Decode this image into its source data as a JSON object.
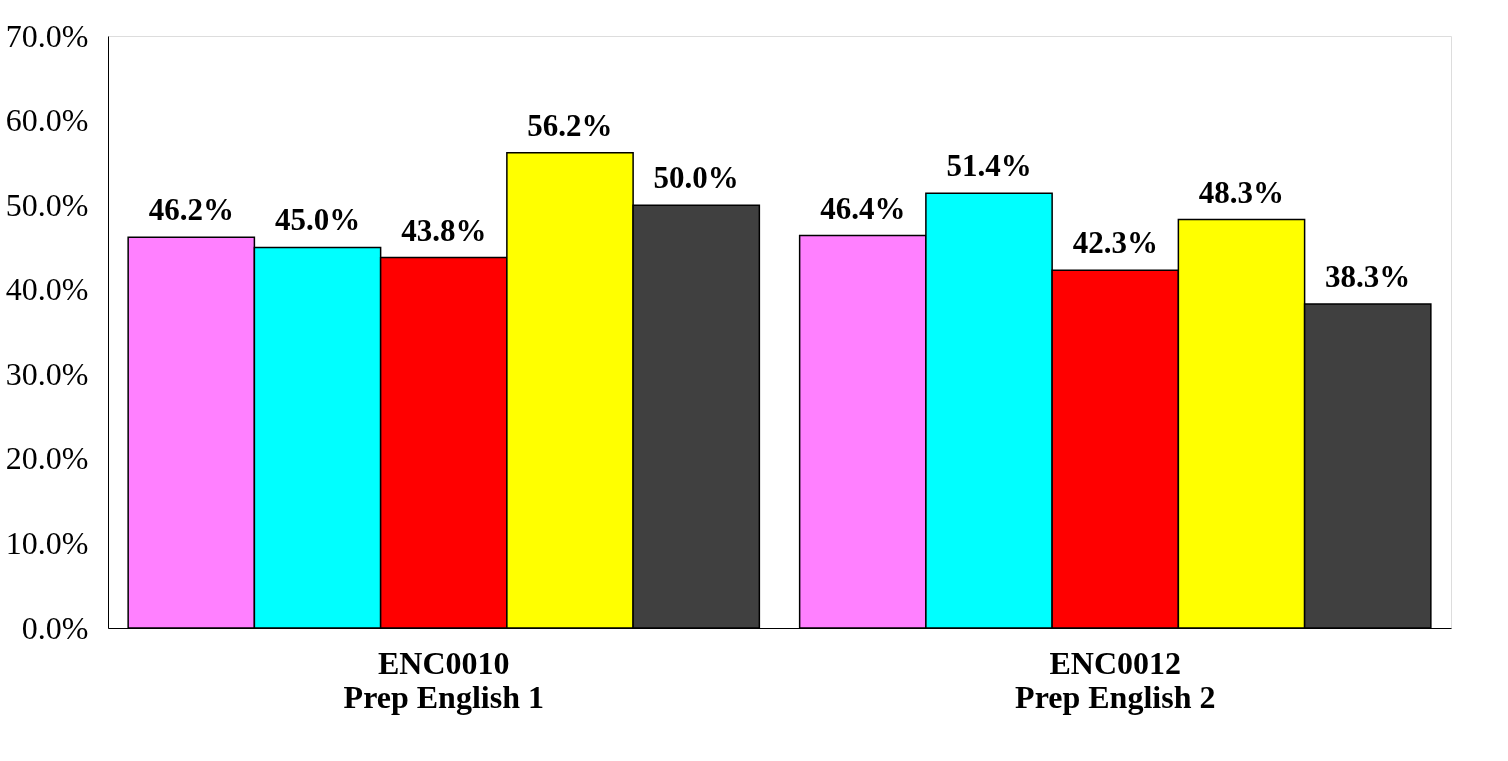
{
  "chart_data": {
    "type": "bar",
    "categories": [
      "ENC0010\nPrep English 1",
      "ENC0012\nPrep English 2"
    ],
    "series": [
      {
        "color": "#ff80ff",
        "values": [
          46.2,
          46.4
        ],
        "value_labels": [
          "46.2%",
          "46.4%"
        ]
      },
      {
        "color": "#00ffff",
        "values": [
          45.0,
          51.4
        ],
        "value_labels": [
          "45.0%",
          "51.4%"
        ]
      },
      {
        "color": "#ff0000",
        "values": [
          43.8,
          42.3
        ],
        "value_labels": [
          "43.8%",
          "42.3%"
        ]
      },
      {
        "color": "#ffff00",
        "values": [
          56.2,
          48.3
        ],
        "value_labels": [
          "56.2%",
          "48.3%"
        ]
      },
      {
        "color": "#404040",
        "values": [
          50.0,
          38.3
        ],
        "value_labels": [
          "50.0%",
          "38.3%"
        ]
      }
    ],
    "ylim": [
      0,
      70
    ],
    "yticks": [
      {
        "value": 0,
        "label": "0.0%"
      },
      {
        "value": 10,
        "label": "10.0%"
      },
      {
        "value": 20,
        "label": "20.0%"
      },
      {
        "value": 30,
        "label": "30.0%"
      },
      {
        "value": 40,
        "label": "40.0%"
      },
      {
        "value": 50,
        "label": "50.0%"
      },
      {
        "value": 60,
        "label": "60.0%"
      },
      {
        "value": 70,
        "label": "70.0%"
      }
    ]
  }
}
